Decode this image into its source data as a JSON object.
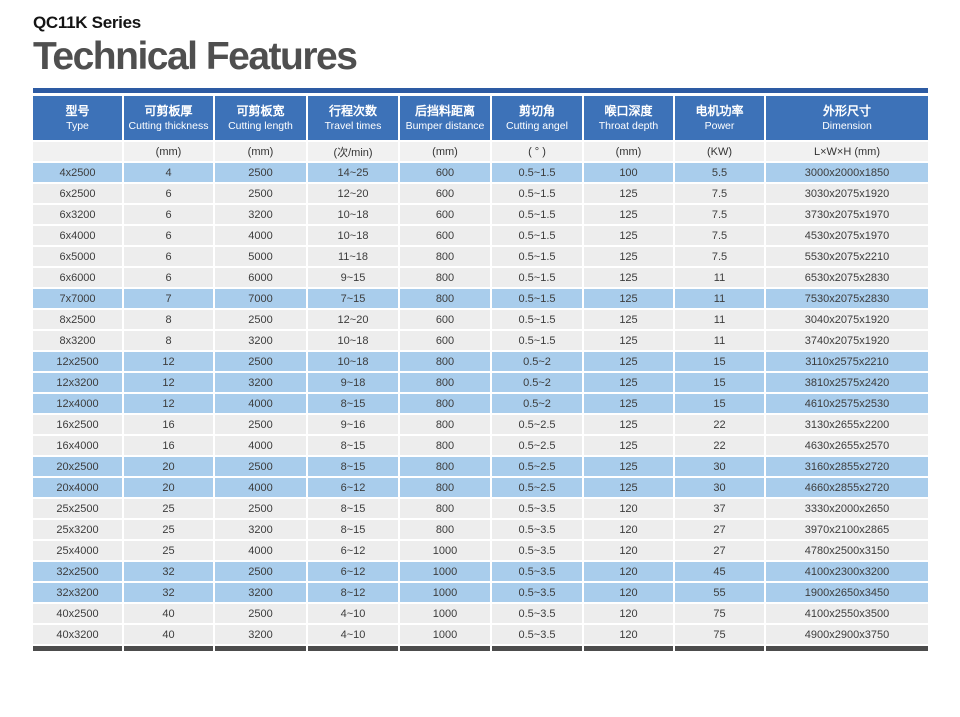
{
  "page": {
    "series_label": "QC11K Series",
    "title": "Technical Features"
  },
  "colors": {
    "header_bg": "#3d72b8",
    "top_accent_bar": "#2d5ba3",
    "highlight_row": "#a9cdec",
    "normal_row": "#ededed",
    "units_row_bg": "#f1f1f1",
    "partial_bottom_row": "#4c4c4c",
    "header_text": "#ffffff",
    "body_text": "#3c3c3c"
  },
  "table": {
    "columns": [
      {
        "zh": "型号",
        "en": "Type",
        "unit": ""
      },
      {
        "zh": "可剪板厚",
        "en": "Cutting thickness",
        "unit": "(mm)"
      },
      {
        "zh": "可剪板宽",
        "en": "Cutting length",
        "unit": "(mm)"
      },
      {
        "zh": "行程次数",
        "en": "Travel times",
        "unit": "(次/min)"
      },
      {
        "zh": "后挡料距离",
        "en": "Bumper distance",
        "unit": "(mm)"
      },
      {
        "zh": "剪切角",
        "en": "Cutting angel",
        "unit": "( ° )"
      },
      {
        "zh": "喉口深度",
        "en": "Throat depth",
        "unit": "(mm)"
      },
      {
        "zh": "电机功率",
        "en": "Power",
        "unit": "(KW)"
      },
      {
        "zh": "外形尺寸",
        "en": "Dimension",
        "unit": "L×W×H (mm)"
      }
    ],
    "rows": [
      {
        "highlight": true,
        "cells": [
          "4x2500",
          "4",
          "2500",
          "14~25",
          "600",
          "0.5~1.5",
          "100",
          "5.5",
          "3000x2000x1850"
        ]
      },
      {
        "highlight": false,
        "cells": [
          "6x2500",
          "6",
          "2500",
          "12~20",
          "600",
          "0.5~1.5",
          "125",
          "7.5",
          "3030x2075x1920"
        ]
      },
      {
        "highlight": false,
        "cells": [
          "6x3200",
          "6",
          "3200",
          "10~18",
          "600",
          "0.5~1.5",
          "125",
          "7.5",
          "3730x2075x1970"
        ]
      },
      {
        "highlight": false,
        "cells": [
          "6x4000",
          "6",
          "4000",
          "10~18",
          "600",
          "0.5~1.5",
          "125",
          "7.5",
          "4530x2075x1970"
        ]
      },
      {
        "highlight": false,
        "cells": [
          "6x5000",
          "6",
          "5000",
          "11~18",
          "800",
          "0.5~1.5",
          "125",
          "7.5",
          "5530x2075x2210"
        ]
      },
      {
        "highlight": false,
        "cells": [
          "6x6000",
          "6",
          "6000",
          "9~15",
          "800",
          "0.5~1.5",
          "125",
          "11",
          "6530x2075x2830"
        ]
      },
      {
        "highlight": true,
        "cells": [
          "7x7000",
          "7",
          "7000",
          "7~15",
          "800",
          "0.5~1.5",
          "125",
          "11",
          "7530x2075x2830"
        ]
      },
      {
        "highlight": false,
        "cells": [
          "8x2500",
          "8",
          "2500",
          "12~20",
          "600",
          "0.5~1.5",
          "125",
          "11",
          "3040x2075x1920"
        ]
      },
      {
        "highlight": false,
        "cells": [
          "8x3200",
          "8",
          "3200",
          "10~18",
          "600",
          "0.5~1.5",
          "125",
          "11",
          "3740x2075x1920"
        ]
      },
      {
        "highlight": true,
        "cells": [
          "12x2500",
          "12",
          "2500",
          "10~18",
          "800",
          "0.5~2",
          "125",
          "15",
          "3110x2575x2210"
        ]
      },
      {
        "highlight": true,
        "cells": [
          "12x3200",
          "12",
          "3200",
          "9~18",
          "800",
          "0.5~2",
          "125",
          "15",
          "3810x2575x2420"
        ]
      },
      {
        "highlight": true,
        "cells": [
          "12x4000",
          "12",
          "4000",
          "8~15",
          "800",
          "0.5~2",
          "125",
          "15",
          "4610x2575x2530"
        ]
      },
      {
        "highlight": false,
        "cells": [
          "16x2500",
          "16",
          "2500",
          "9~16",
          "800",
          "0.5~2.5",
          "125",
          "22",
          "3130x2655x2200"
        ]
      },
      {
        "highlight": false,
        "cells": [
          "16x4000",
          "16",
          "4000",
          "8~15",
          "800",
          "0.5~2.5",
          "125",
          "22",
          "4630x2655x2570"
        ]
      },
      {
        "highlight": true,
        "cells": [
          "20x2500",
          "20",
          "2500",
          "8~15",
          "800",
          "0.5~2.5",
          "125",
          "30",
          "3160x2855x2720"
        ]
      },
      {
        "highlight": true,
        "cells": [
          "20x4000",
          "20",
          "4000",
          "6~12",
          "800",
          "0.5~2.5",
          "125",
          "30",
          "4660x2855x2720"
        ]
      },
      {
        "highlight": false,
        "cells": [
          "25x2500",
          "25",
          "2500",
          "8~15",
          "800",
          "0.5~3.5",
          "120",
          "37",
          "3330x2000x2650"
        ]
      },
      {
        "highlight": false,
        "cells": [
          "25x3200",
          "25",
          "3200",
          "8~15",
          "800",
          "0.5~3.5",
          "120",
          "27",
          "3970x2100x2865"
        ]
      },
      {
        "highlight": false,
        "cells": [
          "25x4000",
          "25",
          "4000",
          "6~12",
          "1000",
          "0.5~3.5",
          "120",
          "27",
          "4780x2500x3150"
        ]
      },
      {
        "highlight": true,
        "cells": [
          "32x2500",
          "32",
          "2500",
          "6~12",
          "1000",
          "0.5~3.5",
          "120",
          "45",
          "4100x2300x3200"
        ]
      },
      {
        "highlight": true,
        "cells": [
          "32x3200",
          "32",
          "3200",
          "8~12",
          "1000",
          "0.5~3.5",
          "120",
          "55",
          "1900x2650x3450"
        ]
      },
      {
        "highlight": false,
        "cells": [
          "40x2500",
          "40",
          "2500",
          "4~10",
          "1000",
          "0.5~3.5",
          "120",
          "75",
          "4100x2550x3500"
        ]
      },
      {
        "highlight": false,
        "cells": [
          "40x3200",
          "40",
          "3200",
          "4~10",
          "1000",
          "0.5~3.5",
          "120",
          "75",
          "4900x2900x3750"
        ]
      }
    ]
  }
}
